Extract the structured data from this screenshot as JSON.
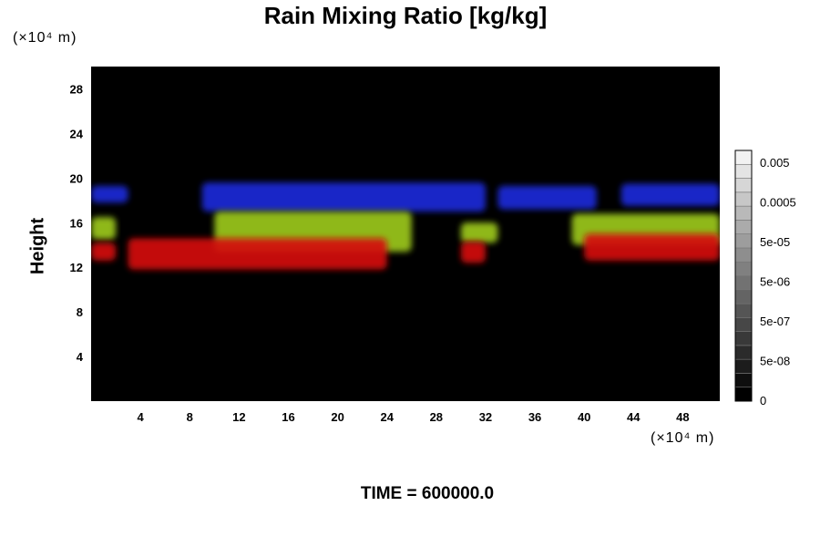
{
  "chart_data": {
    "type": "heatmap",
    "title": "Rain Mixing Ratio [kg/kg]",
    "y_unit": "(×10⁴ m)",
    "x_unit": "(×10⁴ m)",
    "ylabel": "Height",
    "xlabel": "",
    "footer": "TIME = 600000.0",
    "xlim": [
      0,
      51
    ],
    "ylim": [
      0,
      30
    ],
    "x_ticks": [
      4,
      8,
      12,
      16,
      20,
      24,
      28,
      32,
      36,
      40,
      44,
      48
    ],
    "y_ticks": [
      4,
      8,
      12,
      16,
      20,
      24,
      28
    ],
    "plot_background": "#000000",
    "layers": [
      {
        "color": "#1a2ad8",
        "segments": [
          {
            "x": [
              0,
              3
            ],
            "y": [
              17.8,
              19.3
            ]
          },
          {
            "x": [
              9,
              32
            ],
            "y": [
              17.0,
              19.6
            ]
          },
          {
            "x": [
              33,
              41
            ],
            "y": [
              17.2,
              19.3
            ]
          },
          {
            "x": [
              43,
              51
            ],
            "y": [
              17.5,
              19.5
            ]
          }
        ]
      },
      {
        "color": "#9cc81e",
        "segments": [
          {
            "x": [
              0,
              2
            ],
            "y": [
              14.5,
              16.5
            ]
          },
          {
            "x": [
              10,
              26
            ],
            "y": [
              13.4,
              17.0
            ]
          },
          {
            "x": [
              30,
              33
            ],
            "y": [
              14.2,
              16.0
            ]
          },
          {
            "x": [
              39,
              51
            ],
            "y": [
              14.0,
              16.8
            ]
          }
        ]
      },
      {
        "color": "#d41010",
        "segments": [
          {
            "x": [
              0,
              2
            ],
            "y": [
              12.6,
              14.2
            ]
          },
          {
            "x": [
              3,
              24
            ],
            "y": [
              11.8,
              14.6
            ]
          },
          {
            "x": [
              30,
              32
            ],
            "y": [
              12.4,
              14.3
            ]
          },
          {
            "x": [
              40,
              51
            ],
            "y": [
              12.6,
              15.0
            ]
          }
        ]
      }
    ],
    "colorbar": {
      "labels": [
        "0.005",
        "0.0005",
        "5e-05",
        "5e-06",
        "5e-07",
        "5e-08",
        "0"
      ],
      "min_color": "#000000",
      "max_color": "#f2f2f2"
    }
  }
}
